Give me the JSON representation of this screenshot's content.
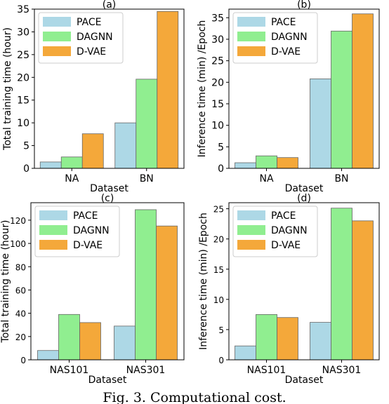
{
  "caption": "Fig. 3.  Computational cost.",
  "legend_labels": [
    "PACE",
    "DAGNN",
    "D-VAE"
  ],
  "colors": {
    "PACE": "#add8e6",
    "DAGNN": "#90ee90",
    "D-VAE": "#f4a83a",
    "edge": "#666666"
  },
  "chart_data": [
    {
      "type": "bar",
      "title": "(a)",
      "xlabel": "Dataset",
      "ylabel": "Total training time (hour)",
      "categories": [
        "NA",
        "BN"
      ],
      "ylim": [
        0,
        35
      ],
      "yticks": [
        0,
        5,
        10,
        15,
        20,
        25,
        30,
        35
      ],
      "legend": "top-left",
      "grid": false,
      "series": [
        {
          "name": "PACE",
          "values": [
            1.4,
            10.0
          ]
        },
        {
          "name": "DAGNN",
          "values": [
            2.5,
            19.6
          ]
        },
        {
          "name": "D-VAE",
          "values": [
            7.6,
            34.5
          ]
        }
      ]
    },
    {
      "type": "bar",
      "title": "(b)",
      "xlabel": "Dataset",
      "ylabel": "Inference time (min) /Epoch",
      "categories": [
        "NA",
        "BN"
      ],
      "ylim": [
        0,
        37
      ],
      "yticks": [
        0,
        5,
        10,
        15,
        20,
        25,
        30,
        35
      ],
      "legend": "top-left",
      "grid": false,
      "series": [
        {
          "name": "PACE",
          "values": [
            1.3,
            20.8
          ]
        },
        {
          "name": "DAGNN",
          "values": [
            2.9,
            31.9
          ]
        },
        {
          "name": "D-VAE",
          "values": [
            2.5,
            35.9
          ]
        }
      ]
    },
    {
      "type": "bar",
      "title": "(c)",
      "xlabel": "Dataset",
      "ylabel": "Total training time (hour)",
      "categories": [
        "NAS101",
        "NAS301"
      ],
      "ylim": [
        0,
        135
      ],
      "yticks": [
        0,
        20,
        40,
        60,
        80,
        100,
        120
      ],
      "legend": "top-left",
      "grid": false,
      "series": [
        {
          "name": "PACE",
          "values": [
            8,
            29
          ]
        },
        {
          "name": "DAGNN",
          "values": [
            39,
            129
          ]
        },
        {
          "name": "D-VAE",
          "values": [
            32,
            115
          ]
        }
      ]
    },
    {
      "type": "bar",
      "title": "(d)",
      "xlabel": "Dataset",
      "ylabel": "Inference time (min) /Epoch",
      "categories": [
        "NAS101",
        "NAS301"
      ],
      "ylim": [
        0,
        26
      ],
      "yticks": [
        0,
        5,
        10,
        15,
        20,
        25
      ],
      "legend": "top-left",
      "grid": false,
      "series": [
        {
          "name": "PACE",
          "values": [
            2.3,
            6.2
          ]
        },
        {
          "name": "DAGNN",
          "values": [
            7.5,
            25.1
          ]
        },
        {
          "name": "D-VAE",
          "values": [
            7.0,
            23.0
          ]
        }
      ]
    }
  ]
}
